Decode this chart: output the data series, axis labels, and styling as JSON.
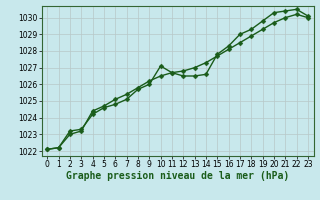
{
  "xlabel": "Graphe pression niveau de la mer (hPa)",
  "bg_color": "#c8e8ec",
  "grid_color": "#aacccc",
  "line_color": "#1a5c1a",
  "x_data": [
    0,
    1,
    2,
    3,
    4,
    5,
    6,
    7,
    8,
    9,
    10,
    11,
    12,
    13,
    14,
    15,
    16,
    17,
    18,
    19,
    20,
    21,
    22,
    23
  ],
  "y1_data": [
    1022.1,
    1022.2,
    1023.2,
    1023.3,
    1024.2,
    1024.6,
    1024.8,
    1025.1,
    1025.7,
    1026.0,
    1027.1,
    1026.7,
    1026.5,
    1026.5,
    1026.6,
    1027.8,
    1028.3,
    1029.0,
    1029.3,
    1029.8,
    1030.3,
    1030.4,
    1030.5,
    1030.1
  ],
  "y2_data": [
    1022.1,
    1022.2,
    1023.0,
    1023.2,
    1024.4,
    1024.7,
    1025.1,
    1025.4,
    1025.8,
    1026.2,
    1026.5,
    1026.7,
    1026.8,
    1027.0,
    1027.3,
    1027.7,
    1028.1,
    1028.5,
    1028.9,
    1029.3,
    1029.7,
    1030.0,
    1030.2,
    1030.0
  ],
  "ylim": [
    1022,
    1030.6
  ],
  "xlim": [
    -0.5,
    23.5
  ],
  "yticks": [
    1022,
    1023,
    1024,
    1025,
    1026,
    1027,
    1028,
    1029,
    1030
  ],
  "xticks": [
    0,
    1,
    2,
    3,
    4,
    5,
    6,
    7,
    8,
    9,
    10,
    11,
    12,
    13,
    14,
    15,
    16,
    17,
    18,
    19,
    20,
    21,
    22,
    23
  ],
  "xlabel_fontsize": 7,
  "tick_fontsize": 5.5,
  "line_width": 1.0,
  "marker_size": 2.5
}
